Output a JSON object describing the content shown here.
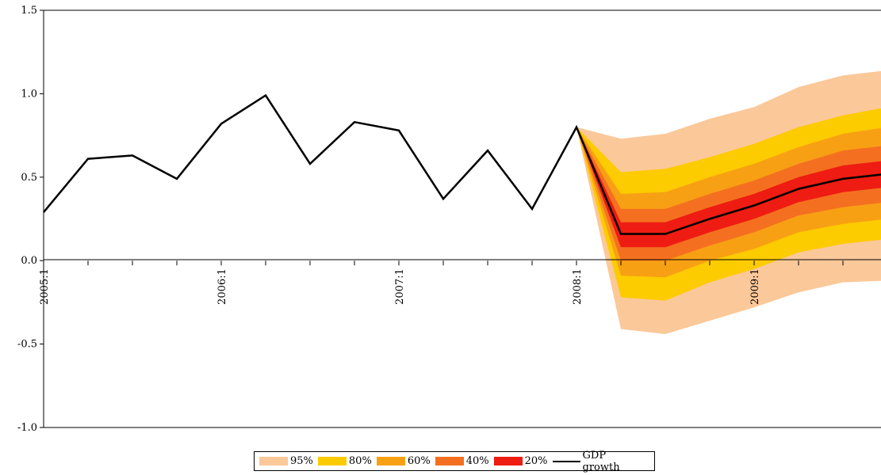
{
  "chart_data": {
    "type": "area",
    "title": "",
    "xlabel": "",
    "ylabel": "",
    "ylim": [
      -1.0,
      1.5
    ],
    "yticks": [
      "-1.0",
      "-0.5",
      "0.0",
      "0.5",
      "1.0",
      "1.5"
    ],
    "x_categories": [
      "2005:1",
      "2005:2",
      "2005:3",
      "2005:4",
      "2006:1",
      "2006:2",
      "2006:3",
      "2006:4",
      "2007:1",
      "2007:2",
      "2007:3",
      "2007:4",
      "2008:1",
      "2008:2",
      "2008:3",
      "2008:4",
      "2009:1",
      "2009:2",
      "2009:3",
      "2009:4"
    ],
    "xtick_labels": [
      {
        "category": "2005:1",
        "label": "2005:1"
      },
      {
        "category": "2006:1",
        "label": "2006:1"
      },
      {
        "category": "2007:1",
        "label": "2007:1"
      },
      {
        "category": "2008:1",
        "label": "2008:1"
      },
      {
        "category": "2009:1",
        "label": "2009:1"
      }
    ],
    "series": [
      {
        "name": "GDP growth",
        "type": "line",
        "color": "#000000",
        "x": [
          "2005:1",
          "2005:2",
          "2005:3",
          "2005:4",
          "2006:1",
          "2006:2",
          "2006:3",
          "2006:4",
          "2007:1",
          "2007:2",
          "2007:3",
          "2007:4",
          "2008:1",
          "2008:2",
          "2008:3",
          "2008:4",
          "2009:1",
          "2009:2",
          "2009:3",
          "2009:4"
        ],
        "values": [
          0.29,
          0.61,
          0.63,
          0.49,
          0.82,
          0.99,
          0.58,
          0.83,
          0.78,
          0.37,
          0.66,
          0.31,
          0.8,
          0.16,
          0.16,
          0.25,
          0.33,
          0.43,
          0.49,
          0.52
        ]
      }
    ],
    "fan": {
      "x": [
        "2008:1",
        "2008:2",
        "2008:3",
        "2008:4",
        "2009:1",
        "2009:2",
        "2009:3",
        "2009:4"
      ],
      "bands": [
        {
          "name": "95%",
          "color": "#FBC899",
          "upper": [
            0.8,
            0.73,
            0.76,
            0.85,
            0.92,
            1.04,
            1.11,
            1.14
          ],
          "lower": [
            0.8,
            -0.41,
            -0.44,
            -0.36,
            -0.28,
            -0.19,
            -0.13,
            -0.12
          ]
        },
        {
          "name": "80%",
          "color": "#FCCB00",
          "upper": [
            0.8,
            0.53,
            0.55,
            0.62,
            0.7,
            0.8,
            0.87,
            0.92
          ],
          "lower": [
            0.8,
            -0.22,
            -0.24,
            -0.13,
            -0.05,
            0.05,
            0.1,
            0.13
          ]
        },
        {
          "name": "60%",
          "color": "#F8A014",
          "upper": [
            0.8,
            0.4,
            0.41,
            0.5,
            0.58,
            0.68,
            0.76,
            0.8
          ],
          "lower": [
            0.8,
            -0.09,
            -0.1,
            0.0,
            0.07,
            0.17,
            0.22,
            0.25
          ]
        },
        {
          "name": "40%",
          "color": "#F47020",
          "upper": [
            0.8,
            0.31,
            0.31,
            0.4,
            0.48,
            0.58,
            0.66,
            0.69
          ],
          "lower": [
            0.8,
            0.0,
            0.0,
            0.09,
            0.17,
            0.27,
            0.32,
            0.35
          ]
        },
        {
          "name": "20%",
          "color": "#EE1C12",
          "upper": [
            0.8,
            0.23,
            0.23,
            0.32,
            0.4,
            0.5,
            0.57,
            0.6
          ],
          "lower": [
            0.8,
            0.08,
            0.08,
            0.17,
            0.25,
            0.35,
            0.41,
            0.44
          ]
        }
      ]
    },
    "legend": {
      "placement": "bottom-center",
      "entries": [
        {
          "label": "95%",
          "color": "#FBC899",
          "kind": "swatch"
        },
        {
          "label": "80%",
          "color": "#FCCB00",
          "kind": "swatch"
        },
        {
          "label": "60%",
          "color": "#F8A014",
          "kind": "swatch"
        },
        {
          "label": "40%",
          "color": "#F47020",
          "kind": "swatch"
        },
        {
          "label": "20%",
          "color": "#EE1C12",
          "kind": "swatch"
        },
        {
          "label": "GDP growth",
          "color": "#000000",
          "kind": "line"
        }
      ]
    },
    "grid": false
  }
}
